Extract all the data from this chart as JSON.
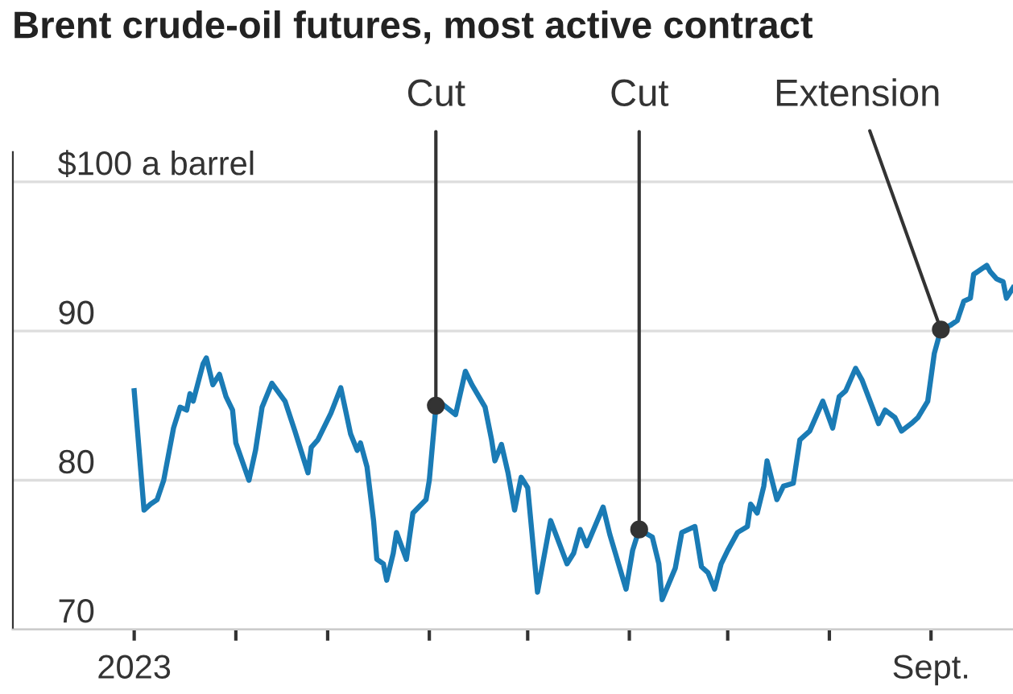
{
  "chart_data": {
    "type": "line",
    "title": "Brent crude-oil futures, most active contract",
    "x": [
      "2023-01-01",
      "2023-01-04",
      "2023-01-06",
      "2023-01-08",
      "2023-01-10",
      "2023-01-13",
      "2023-01-15",
      "2023-01-17",
      "2023-01-18",
      "2023-01-19",
      "2023-01-22",
      "2023-01-23",
      "2023-01-25",
      "2023-01-27",
      "2023-01-29",
      "2023-01-31",
      "2023-02-01",
      "2023-02-05",
      "2023-02-07",
      "2023-02-09",
      "2023-02-12",
      "2023-02-16",
      "2023-02-19",
      "2023-02-23",
      "2023-02-24",
      "2023-02-26",
      "2023-03-02",
      "2023-03-05",
      "2023-03-08",
      "2023-03-10",
      "2023-03-11",
      "2023-03-13",
      "2023-03-15",
      "2023-03-16",
      "2023-03-18",
      "2023-03-19",
      "2023-03-21",
      "2023-03-22",
      "2023-03-25",
      "2023-03-27",
      "2023-03-31",
      "2023-04-01",
      "2023-04-03",
      "2023-04-05",
      "2023-04-09",
      "2023-04-12",
      "2023-04-14",
      "2023-04-18",
      "2023-04-20",
      "2023-04-21",
      "2023-04-23",
      "2023-04-25",
      "2023-04-27",
      "2023-04-29",
      "2023-05-01",
      "2023-05-04",
      "2023-05-08",
      "2023-05-13",
      "2023-05-15",
      "2023-05-17",
      "2023-05-19",
      "2023-05-24",
      "2023-05-26",
      "2023-05-31",
      "2023-06-02",
      "2023-06-04",
      "2023-06-08",
      "2023-06-10",
      "2023-06-11",
      "2023-06-15",
      "2023-06-17",
      "2023-06-21",
      "2023-06-23",
      "2023-06-25",
      "2023-06-27",
      "2023-06-29",
      "2023-07-01",
      "2023-07-04",
      "2023-07-07",
      "2023-07-08",
      "2023-07-10",
      "2023-07-12",
      "2023-07-13",
      "2023-07-16",
      "2023-07-18",
      "2023-07-21",
      "2023-07-23",
      "2023-07-26",
      "2023-07-30",
      "2023-08-02",
      "2023-08-04",
      "2023-08-06",
      "2023-08-09",
      "2023-08-11",
      "2023-08-16",
      "2023-08-18",
      "2023-08-21",
      "2023-08-23",
      "2023-08-26",
      "2023-08-28",
      "2023-08-31",
      "2023-09-02",
      "2023-09-04",
      "2023-09-07",
      "2023-09-09",
      "2023-09-11",
      "2023-09-13",
      "2023-09-14",
      "2023-09-18",
      "2023-09-19",
      "2023-09-21",
      "2023-09-23",
      "2023-09-24",
      "2023-09-26"
    ],
    "series": [
      {
        "color": "#1a7bb5",
        "values": [
          86.0,
          78.0,
          78.4,
          78.7,
          80.0,
          83.5,
          84.9,
          84.7,
          85.8,
          85.3,
          87.8,
          88.2,
          86.4,
          87.1,
          85.6,
          84.7,
          82.5,
          80.0,
          82.0,
          84.9,
          86.5,
          85.3,
          83.3,
          80.5,
          82.2,
          82.7,
          84.5,
          86.2,
          83.1,
          82.0,
          82.5,
          80.9,
          77.3,
          74.7,
          74.4,
          73.3,
          75.1,
          76.5,
          74.7,
          77.8,
          78.7,
          80.0,
          84.9,
          85.1,
          84.4,
          87.3,
          86.4,
          84.9,
          82.7,
          81.3,
          82.4,
          80.5,
          78.0,
          80.2,
          79.5,
          72.5,
          77.3,
          74.4,
          75.1,
          76.7,
          75.6,
          78.2,
          76.4,
          72.7,
          75.3,
          76.7,
          76.2,
          74.4,
          72.0,
          74.1,
          76.5,
          76.9,
          74.2,
          73.8,
          72.7,
          74.4,
          75.3,
          76.5,
          76.9,
          78.4,
          77.8,
          79.6,
          81.3,
          78.7,
          79.6,
          79.8,
          82.7,
          83.3,
          85.3,
          83.5,
          85.6,
          86.0,
          87.5,
          86.7,
          83.8,
          84.7,
          84.2,
          83.3,
          83.8,
          84.2,
          85.3,
          88.5,
          90.1,
          90.4,
          90.7,
          92.0,
          92.2,
          93.8,
          94.4,
          94.0,
          93.5,
          93.3,
          92.2,
          92.9
        ]
      }
    ],
    "annotations": [
      {
        "text": "Cut",
        "x": "2023-04-03",
        "y": 85.0
      },
      {
        "text": "Cut",
        "x": "2023-06-04",
        "y": 76.7
      },
      {
        "text": "Extension",
        "x": "2023-09-04",
        "y": 90.1
      }
    ],
    "xlim": [
      "2022-11-25",
      "2023-09-26"
    ],
    "xticks": [
      {
        "value": "2023-01-01",
        "label": "2023"
      },
      {
        "value": "2023-02-01",
        "label": null
      },
      {
        "value": "2023-03-01",
        "label": null
      },
      {
        "value": "2023-04-01",
        "label": null
      },
      {
        "value": "2023-05-01",
        "label": null
      },
      {
        "value": "2023-06-01",
        "label": null
      },
      {
        "value": "2023-07-01",
        "label": null
      },
      {
        "value": "2023-08-01",
        "label": null
      },
      {
        "value": "2023-09-01",
        "label": "Sept."
      }
    ],
    "ylim": [
      70,
      102
    ],
    "yticks": [
      70,
      80,
      90,
      {
        "value": 100,
        "label": "$100 a barrel"
      }
    ],
    "grid": "y",
    "legend": false
  }
}
